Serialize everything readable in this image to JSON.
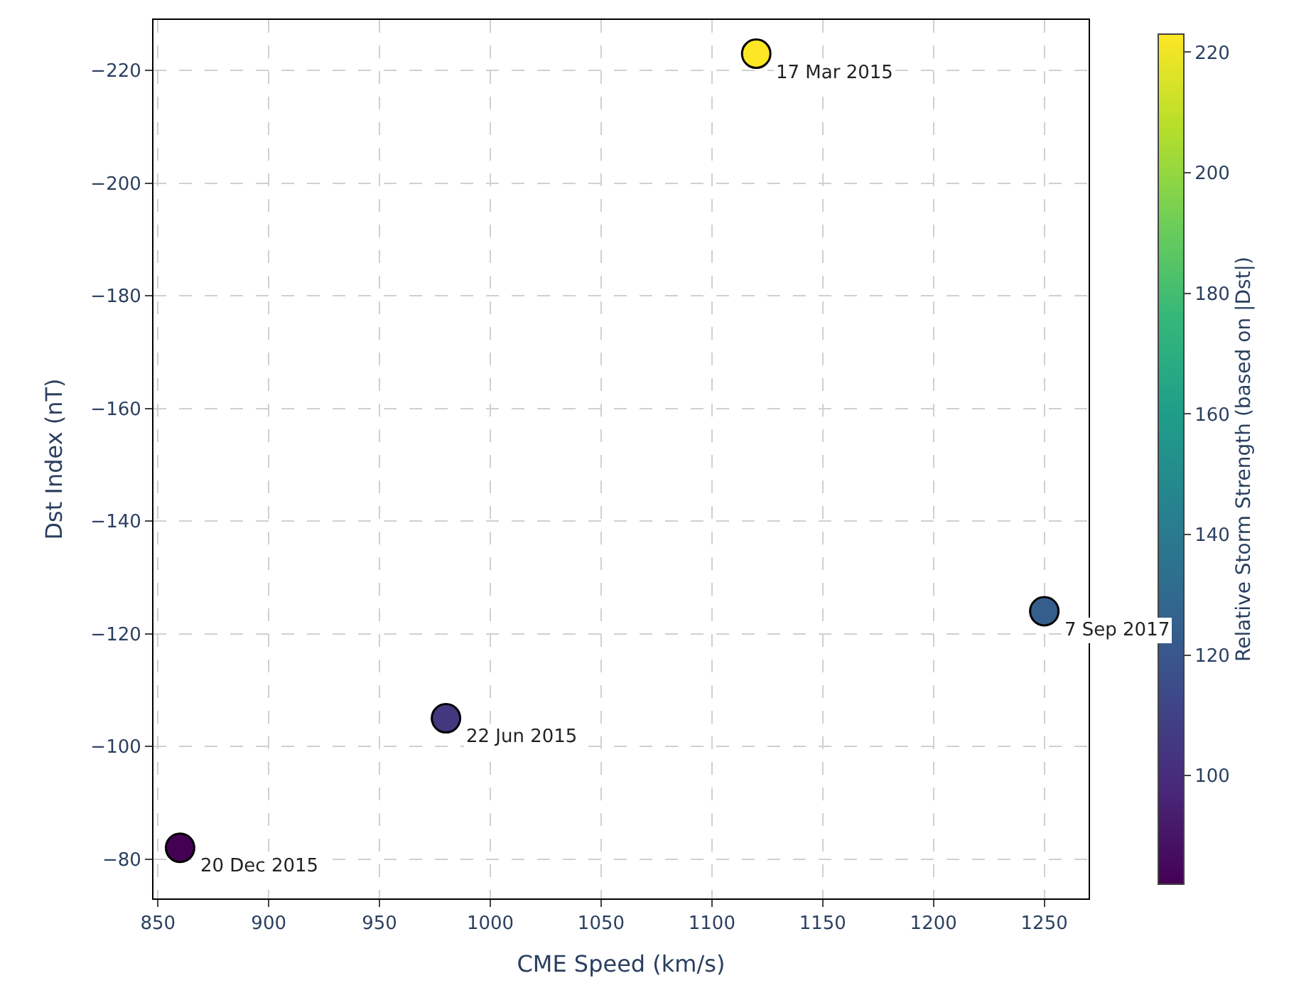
{
  "chart_data": {
    "type": "scatter",
    "xlabel": "CME Speed (km/s)",
    "ylabel": "Dst Index (nT)",
    "clabel": "Relative Storm Strength (based on |Dst|)",
    "x": [
      860,
      980,
      1120,
      1250
    ],
    "values": [
      -82,
      -105,
      -223,
      -124
    ],
    "cvalues": [
      82,
      105,
      223,
      124
    ],
    "clim": [
      82,
      223
    ],
    "cticks": [
      100,
      120,
      140,
      160,
      180,
      200,
      220
    ],
    "xlim": [
      848,
      1270
    ],
    "xticks": [
      850,
      900,
      950,
      1000,
      1050,
      1100,
      1150,
      1200,
      1250
    ],
    "ylim": [
      -73,
      -229
    ],
    "yticks": [
      -80,
      -100,
      -120,
      -140,
      -160,
      -180,
      -200,
      -220
    ],
    "grid": true,
    "marker": "circle",
    "annotations": [
      {
        "text": "20 Dec 2015",
        "x": 860,
        "y": -82
      },
      {
        "text": "22 Jun 2015",
        "x": 980,
        "y": -105
      },
      {
        "text": "17 Mar 2015",
        "x": 1120,
        "y": -223
      },
      {
        "text": "7 Sep 2017",
        "x": 1250,
        "y": -124
      }
    ]
  }
}
